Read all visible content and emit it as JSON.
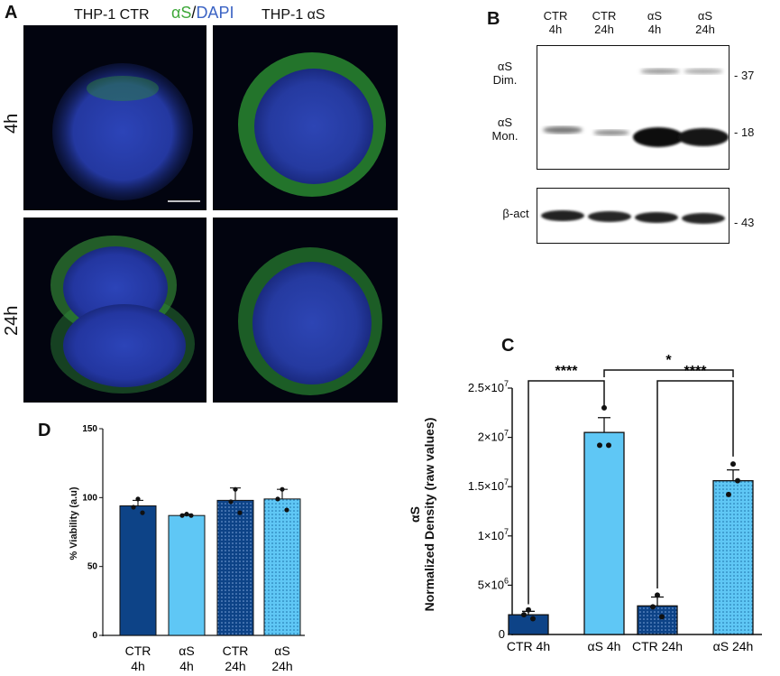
{
  "panel_a": {
    "letter": "A",
    "col_ctr": "THP-1 CTR",
    "stain_as": "αS",
    "stain_sep": "/",
    "stain_dapi": "DAPI",
    "col_as": "THP-1 αS",
    "row_4h": "4h",
    "row_24h": "24h",
    "colors": {
      "nucleus": "#2d3fb0",
      "as_signal": "#3fb03a",
      "stain_as_text": "#3fa83a",
      "stain_dapi_text": "#3b63c4"
    }
  },
  "panel_b": {
    "letter": "B",
    "lanes": [
      {
        "line1": "CTR",
        "line2": "4h"
      },
      {
        "line1": "CTR",
        "line2": "24h"
      },
      {
        "line1": "αS",
        "line2": "4h"
      },
      {
        "line1": "αS",
        "line2": "24h"
      }
    ],
    "dim_label_1": "αS",
    "dim_label_2": "Dim.",
    "mon_label_1": "αS",
    "mon_label_2": "Mon.",
    "actin_label": "β-act",
    "mw_37": "- 37",
    "mw_18": "- 18",
    "mw_43": "- 43"
  },
  "panel_c": {
    "letter": "C",
    "ylabel_1": "αS",
    "ylabel_2": "Normalized Density (raw values)",
    "sig_1": "****",
    "sig_2": "*",
    "sig_3": "****"
  },
  "panel_d": {
    "letter": "D",
    "ylabel": "% Viability (a.u)"
  },
  "chart_data": [
    {
      "id": "C",
      "type": "bar",
      "categories": [
        "CTR  4h",
        "αS 4h",
        "CTR  24h",
        "αS 24h"
      ],
      "values": [
        2000000.0,
        20500000.0,
        2900000.0,
        15600000.0
      ],
      "errors": [
        350000.0,
        1500000.0,
        900000.0,
        1100000.0
      ],
      "points": [
        [
          2500000.0,
          2000000.0,
          1600000.0
        ],
        [
          23000000.0,
          19200000.0,
          19200000.0
        ],
        [
          4000000.0,
          2800000.0,
          1800000.0
        ],
        [
          17300000.0,
          14200000.0,
          15600000.0
        ]
      ],
      "ylim": [
        0,
        25000000.0
      ],
      "yticks": [
        0,
        5000000.0,
        10000000.0,
        15000000.0,
        20000000.0,
        25000000.0
      ],
      "ytick_mantissa": [
        "0",
        "5×10",
        "1×10",
        "1.5×10",
        "2×10",
        "2.5×10"
      ],
      "ytick_exponent": [
        "",
        "6",
        "7",
        "7",
        "7",
        "7"
      ],
      "ylabel": "αS Normalized Density (raw values)",
      "colors": [
        "#0d4387",
        "#5fc7f5",
        "#0d4387",
        "#5fc7f5"
      ],
      "patterns": [
        "solid",
        "solid",
        "dots",
        "dots"
      ],
      "comparisons": [
        {
          "from": 0,
          "to": 1,
          "label": "****"
        },
        {
          "from": 1,
          "to": 3,
          "label": "*"
        },
        {
          "from": 2,
          "to": 3,
          "label": "****"
        }
      ]
    },
    {
      "id": "D",
      "type": "bar",
      "categories": [
        [
          "CTR",
          "4h"
        ],
        [
          "αS",
          "4h"
        ],
        [
          "CTR",
          "24h"
        ],
        [
          "αS",
          "24h"
        ]
      ],
      "values": [
        94,
        87,
        98,
        99
      ],
      "errors": [
        4,
        1,
        9,
        7
      ],
      "points": [
        [
          99,
          93,
          89
        ],
        [
          88,
          87,
          87
        ],
        [
          106,
          97,
          89
        ],
        [
          106,
          99,
          91
        ]
      ],
      "ylim": [
        0,
        150
      ],
      "yticks": [
        0,
        50,
        100,
        150
      ],
      "ylabel": "% Viability (a.u)",
      "colors": [
        "#0d4387",
        "#5fc7f5",
        "#0d4387",
        "#5fc7f5"
      ],
      "patterns": [
        "solid",
        "solid",
        "dots",
        "dots"
      ]
    }
  ]
}
